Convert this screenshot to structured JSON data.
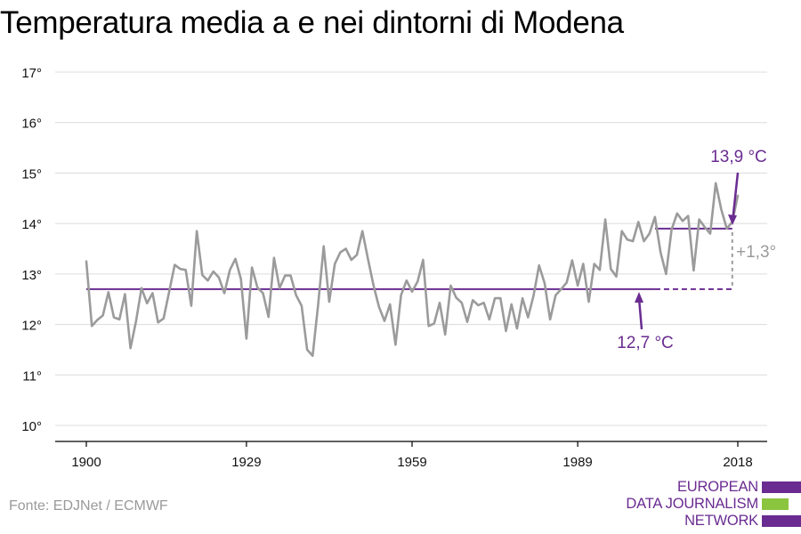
{
  "title": "Temperatura media a e nei dintorni di Modena",
  "source": "Fonte: EDJNet / ECMWF",
  "logo": {
    "lines": [
      "EUROPEAN",
      "DATA JOURNALISM",
      "NETWORK"
    ],
    "colors": [
      "#6a2c91",
      "#8bc53f",
      "#6a2c91"
    ]
  },
  "colors": {
    "series": "#9b9b9b",
    "reference": "#6a2c91",
    "grid": "#dcdcdc",
    "axis": "#000000",
    "diff": "#9b9b9b"
  },
  "annotations": {
    "recent_avg_label": "13,9 °C",
    "base_avg_label": "12,7 °C",
    "diff_label": "+1,3°"
  },
  "chart_data": {
    "type": "line",
    "title": "Temperatura media a e nei dintorni di Modena",
    "xlabel": "",
    "ylabel": "",
    "ylim": [
      10,
      17
    ],
    "xlim": [
      1900,
      2018
    ],
    "grid": true,
    "y_ticks": [
      10,
      11,
      12,
      13,
      14,
      15,
      16,
      17
    ],
    "y_tick_labels": [
      "10°",
      "11°",
      "12°",
      "13°",
      "14°",
      "15°",
      "16°",
      "17°"
    ],
    "x_ticks": [
      1900,
      1929,
      1959,
      1989,
      2018
    ],
    "x_tick_labels": [
      "1900",
      "1929",
      "1959",
      "1989",
      "2018"
    ],
    "series": [
      {
        "values": [
          [
            1900,
            13.25
          ],
          [
            1901,
            11.97
          ],
          [
            1902,
            12.09
          ],
          [
            1903,
            12.18
          ],
          [
            1904,
            12.64
          ],
          [
            1905,
            12.14
          ],
          [
            1906,
            12.1
          ],
          [
            1907,
            12.6
          ],
          [
            1908,
            11.53
          ],
          [
            1909,
            12.06
          ],
          [
            1910,
            12.72
          ],
          [
            1911,
            12.42
          ],
          [
            1912,
            12.62
          ],
          [
            1913,
            12.04
          ],
          [
            1914,
            12.12
          ],
          [
            1915,
            12.65
          ],
          [
            1916,
            13.18
          ],
          [
            1917,
            13.1
          ],
          [
            1918,
            13.08
          ],
          [
            1919,
            12.37
          ],
          [
            1920,
            13.85
          ],
          [
            1921,
            12.98
          ],
          [
            1922,
            12.87
          ],
          [
            1923,
            13.05
          ],
          [
            1924,
            12.93
          ],
          [
            1925,
            12.62
          ],
          [
            1926,
            13.08
          ],
          [
            1927,
            13.3
          ],
          [
            1928,
            12.9
          ],
          [
            1929,
            11.72
          ],
          [
            1930,
            13.13
          ],
          [
            1931,
            12.73
          ],
          [
            1932,
            12.62
          ],
          [
            1933,
            12.15
          ],
          [
            1934,
            13.32
          ],
          [
            1935,
            12.72
          ],
          [
            1936,
            12.97
          ],
          [
            1937,
            12.97
          ],
          [
            1938,
            12.58
          ],
          [
            1939,
            12.37
          ],
          [
            1940,
            11.5
          ],
          [
            1941,
            11.38
          ],
          [
            1942,
            12.4
          ],
          [
            1943,
            13.55
          ],
          [
            1944,
            12.45
          ],
          [
            1945,
            13.2
          ],
          [
            1946,
            13.43
          ],
          [
            1947,
            13.5
          ],
          [
            1948,
            13.28
          ],
          [
            1949,
            13.38
          ],
          [
            1950,
            13.85
          ],
          [
            1951,
            13.3
          ],
          [
            1952,
            12.78
          ],
          [
            1953,
            12.35
          ],
          [
            1954,
            12.07
          ],
          [
            1955,
            12.4
          ],
          [
            1956,
            11.6
          ],
          [
            1957,
            12.58
          ],
          [
            1958,
            12.87
          ],
          [
            1959,
            12.65
          ],
          [
            1960,
            12.85
          ],
          [
            1961,
            13.28
          ],
          [
            1962,
            11.97
          ],
          [
            1963,
            12.02
          ],
          [
            1964,
            12.43
          ],
          [
            1965,
            11.8
          ],
          [
            1966,
            12.77
          ],
          [
            1967,
            12.53
          ],
          [
            1968,
            12.43
          ],
          [
            1969,
            12.05
          ],
          [
            1970,
            12.48
          ],
          [
            1971,
            12.38
          ],
          [
            1972,
            12.43
          ],
          [
            1973,
            12.1
          ],
          [
            1974,
            12.52
          ],
          [
            1975,
            12.52
          ],
          [
            1976,
            11.87
          ],
          [
            1977,
            12.4
          ],
          [
            1978,
            11.92
          ],
          [
            1979,
            12.52
          ],
          [
            1980,
            12.14
          ],
          [
            1981,
            12.57
          ],
          [
            1982,
            13.17
          ],
          [
            1983,
            12.82
          ],
          [
            1984,
            12.1
          ],
          [
            1985,
            12.58
          ],
          [
            1986,
            12.7
          ],
          [
            1987,
            12.83
          ],
          [
            1988,
            13.27
          ],
          [
            1989,
            12.77
          ],
          [
            1990,
            13.2
          ],
          [
            1991,
            12.45
          ],
          [
            1992,
            13.2
          ],
          [
            1993,
            13.08
          ],
          [
            1994,
            14.08
          ],
          [
            1995,
            13.1
          ],
          [
            1996,
            12.95
          ],
          [
            1997,
            13.85
          ],
          [
            1998,
            13.68
          ],
          [
            1999,
            13.65
          ],
          [
            2000,
            14.03
          ],
          [
            2001,
            13.65
          ],
          [
            2002,
            13.8
          ],
          [
            2003,
            14.13
          ],
          [
            2004,
            13.43
          ],
          [
            2005,
            13.0
          ],
          [
            2006,
            13.88
          ],
          [
            2007,
            14.2
          ],
          [
            2008,
            14.05
          ],
          [
            2009,
            14.15
          ],
          [
            2010,
            13.07
          ],
          [
            2011,
            14.08
          ],
          [
            2012,
            13.93
          ],
          [
            2013,
            13.8
          ],
          [
            2014,
            14.8
          ],
          [
            2015,
            14.28
          ],
          [
            2016,
            13.9
          ],
          [
            2017,
            14.03
          ],
          [
            2018,
            14.55
          ]
        ]
      }
    ],
    "reference_lines": [
      {
        "value": 12.7,
        "from": 1900,
        "to": 2003,
        "dashed_to": 2017
      },
      {
        "value": 13.9,
        "from": 2003,
        "to": 2017
      }
    ]
  }
}
